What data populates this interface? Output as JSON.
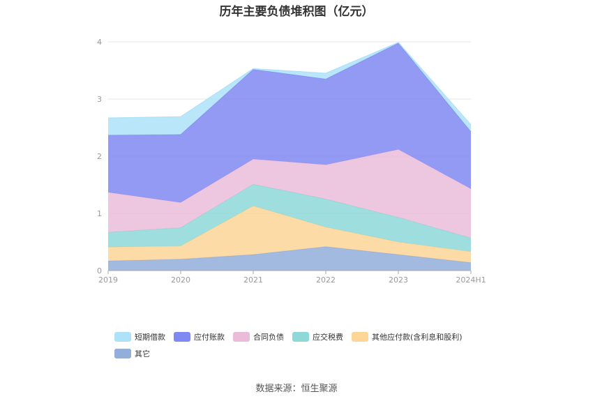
{
  "title": "历年主要负债堆积图（亿元）",
  "source": "数据来源：恒生聚源",
  "chart_data": {
    "type": "area",
    "stacked": true,
    "title": "历年主要负债堆积图（亿元）",
    "x": [
      "2019",
      "2020",
      "2021",
      "2022",
      "2023",
      "2024H1"
    ],
    "ylim": [
      0,
      4
    ],
    "yticks": [
      "0",
      "1",
      "2",
      "3",
      "4"
    ],
    "grid": true,
    "legend_position": "bottom",
    "series": [
      {
        "name": "其它",
        "color": "#93aedb",
        "values": [
          0.17,
          0.2,
          0.28,
          0.42,
          0.28,
          0.14
        ]
      },
      {
        "name": "其他应付款(含利息和股利)",
        "color": "#fcd597",
        "values": [
          0.24,
          0.23,
          0.85,
          0.34,
          0.22,
          0.19
        ]
      },
      {
        "name": "应交税费",
        "color": "#8ed8d8",
        "values": [
          0.26,
          0.32,
          0.38,
          0.49,
          0.43,
          0.24
        ]
      },
      {
        "name": "合同负债",
        "color": "#eabcd9",
        "values": [
          0.7,
          0.44,
          0.44,
          0.6,
          1.19,
          0.86
        ]
      },
      {
        "name": "应付账款",
        "color": "#8088f2",
        "values": [
          1.0,
          1.19,
          1.57,
          1.5,
          1.86,
          1.0
        ]
      },
      {
        "name": "短期借款",
        "color": "#aee2f8",
        "values": [
          0.3,
          0.31,
          0.01,
          0.1,
          0.01,
          0.12
        ]
      }
    ]
  }
}
